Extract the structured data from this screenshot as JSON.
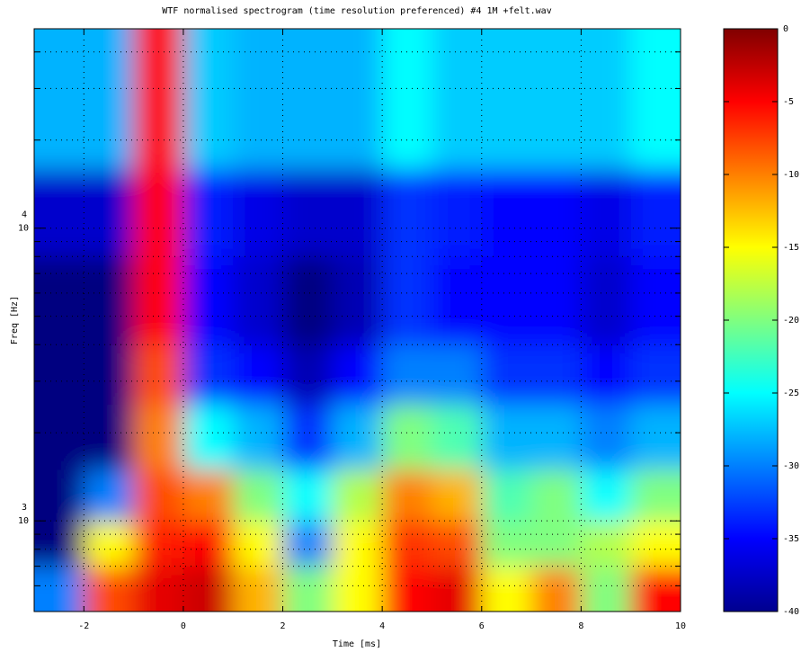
{
  "chart_data": {
    "type": "heatmap",
    "title": "WTF normalised spectrogram (time resolution preferenced)  #4 1M +felt.wav",
    "x_label": "Time [ms]",
    "y_label": "Freq [Hz]",
    "colormap": "jet",
    "xlim": [
      -3,
      10
    ],
    "xticks": [
      -2,
      0,
      2,
      4,
      6,
      8,
      10
    ],
    "ylim": [
      490,
      48000
    ],
    "y_log": true,
    "yticks": [
      {
        "value": 1000,
        "label": "10",
        "exponent": "3"
      },
      {
        "value": 10000,
        "label": "10",
        "exponent": "4"
      }
    ],
    "y_minor_ticks": [
      600,
      700,
      800,
      900,
      2000,
      3000,
      4000,
      5000,
      6000,
      7000,
      8000,
      9000,
      20000,
      30000,
      40000
    ],
    "grid": true,
    "x_edges": [
      -3,
      -2,
      -1,
      0,
      1,
      2,
      3,
      4,
      5,
      6,
      7,
      8,
      9,
      10
    ],
    "y_edges": [
      490,
      700,
      1000,
      1500,
      2500,
      4000,
      8000,
      16000,
      48000
    ],
    "z": [
      [
        -30,
        -8,
        -4,
        -3,
        -12,
        -20,
        -15,
        -5,
        -4,
        -15,
        -10,
        -20,
        -5
      ],
      [
        -40,
        -15,
        -6,
        -5,
        -15,
        -30,
        -15,
        -7,
        -8,
        -20,
        -20,
        -18,
        -15
      ],
      [
        -40,
        -30,
        -8,
        -10,
        -20,
        -25,
        -18,
        -10,
        -12,
        -22,
        -20,
        -25,
        -20
      ],
      [
        -40,
        -40,
        -10,
        -25,
        -28,
        -33,
        -28,
        -20,
        -22,
        -28,
        -28,
        -30,
        -28
      ],
      [
        -40,
        -40,
        -8,
        -33,
        -35,
        -38,
        -35,
        -30,
        -30,
        -33,
        -33,
        -35,
        -33
      ],
      [
        -40,
        -40,
        -5,
        -35,
        -37,
        -40,
        -38,
        -33,
        -35,
        -35,
        -35,
        -37,
        -35
      ],
      [
        -37,
        -37,
        -5,
        -34,
        -36,
        -37,
        -37,
        -33,
        -34,
        -35,
        -35,
        -36,
        -34
      ],
      [
        -28,
        -28,
        -5,
        -27,
        -28,
        -28,
        -28,
        -25,
        -27,
        -27,
        -27,
        -27,
        -25
      ]
    ],
    "clim": [
      -40,
      0
    ],
    "cticks": [
      0,
      -5,
      -10,
      -15,
      -20,
      -25,
      -30,
      -35,
      -40
    ]
  }
}
